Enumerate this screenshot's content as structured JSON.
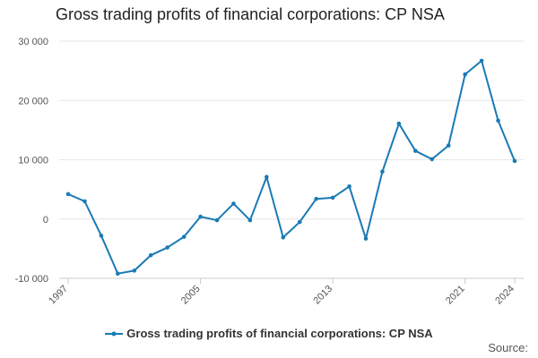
{
  "title": "Gross trading profits of financial corporations: CP NSA",
  "source_label": "Source:",
  "colors": {
    "series": "#1a7ab5",
    "grid": "#e6e6e6",
    "axis": "#cccccc"
  },
  "chart_data": {
    "type": "line",
    "title": "Gross trading profits of financial corporations: CP NSA",
    "xlabel": "",
    "ylabel": "",
    "x": [
      1997,
      1998,
      1999,
      2000,
      2001,
      2002,
      2003,
      2004,
      2005,
      2006,
      2007,
      2008,
      2009,
      2010,
      2011,
      2012,
      2013,
      2014,
      2015,
      2016,
      2017,
      2018,
      2019,
      2020,
      2021,
      2022,
      2023,
      2024
    ],
    "x_tick_labels": [
      "1997",
      "2005",
      "2013",
      "2021",
      "2024"
    ],
    "xlim": [
      1997,
      2024
    ],
    "y_tick_labels": [
      "30 000",
      "20 000",
      "10 000",
      "0",
      "-10 000"
    ],
    "ylim": [
      -10000,
      30000
    ],
    "grid": true,
    "legend_position": "bottom",
    "series": [
      {
        "name": "Gross trading profits of financial corporations: CP NSA",
        "values": [
          4200,
          3000,
          -2800,
          -9200,
          -8700,
          -6100,
          -4800,
          -3000,
          400,
          -200,
          2600,
          -200,
          7100,
          -3100,
          -500,
          3400,
          3600,
          5500,
          -3300,
          8000,
          16100,
          11500,
          10100,
          12400,
          24400,
          26700,
          16600,
          9800
        ]
      }
    ]
  }
}
